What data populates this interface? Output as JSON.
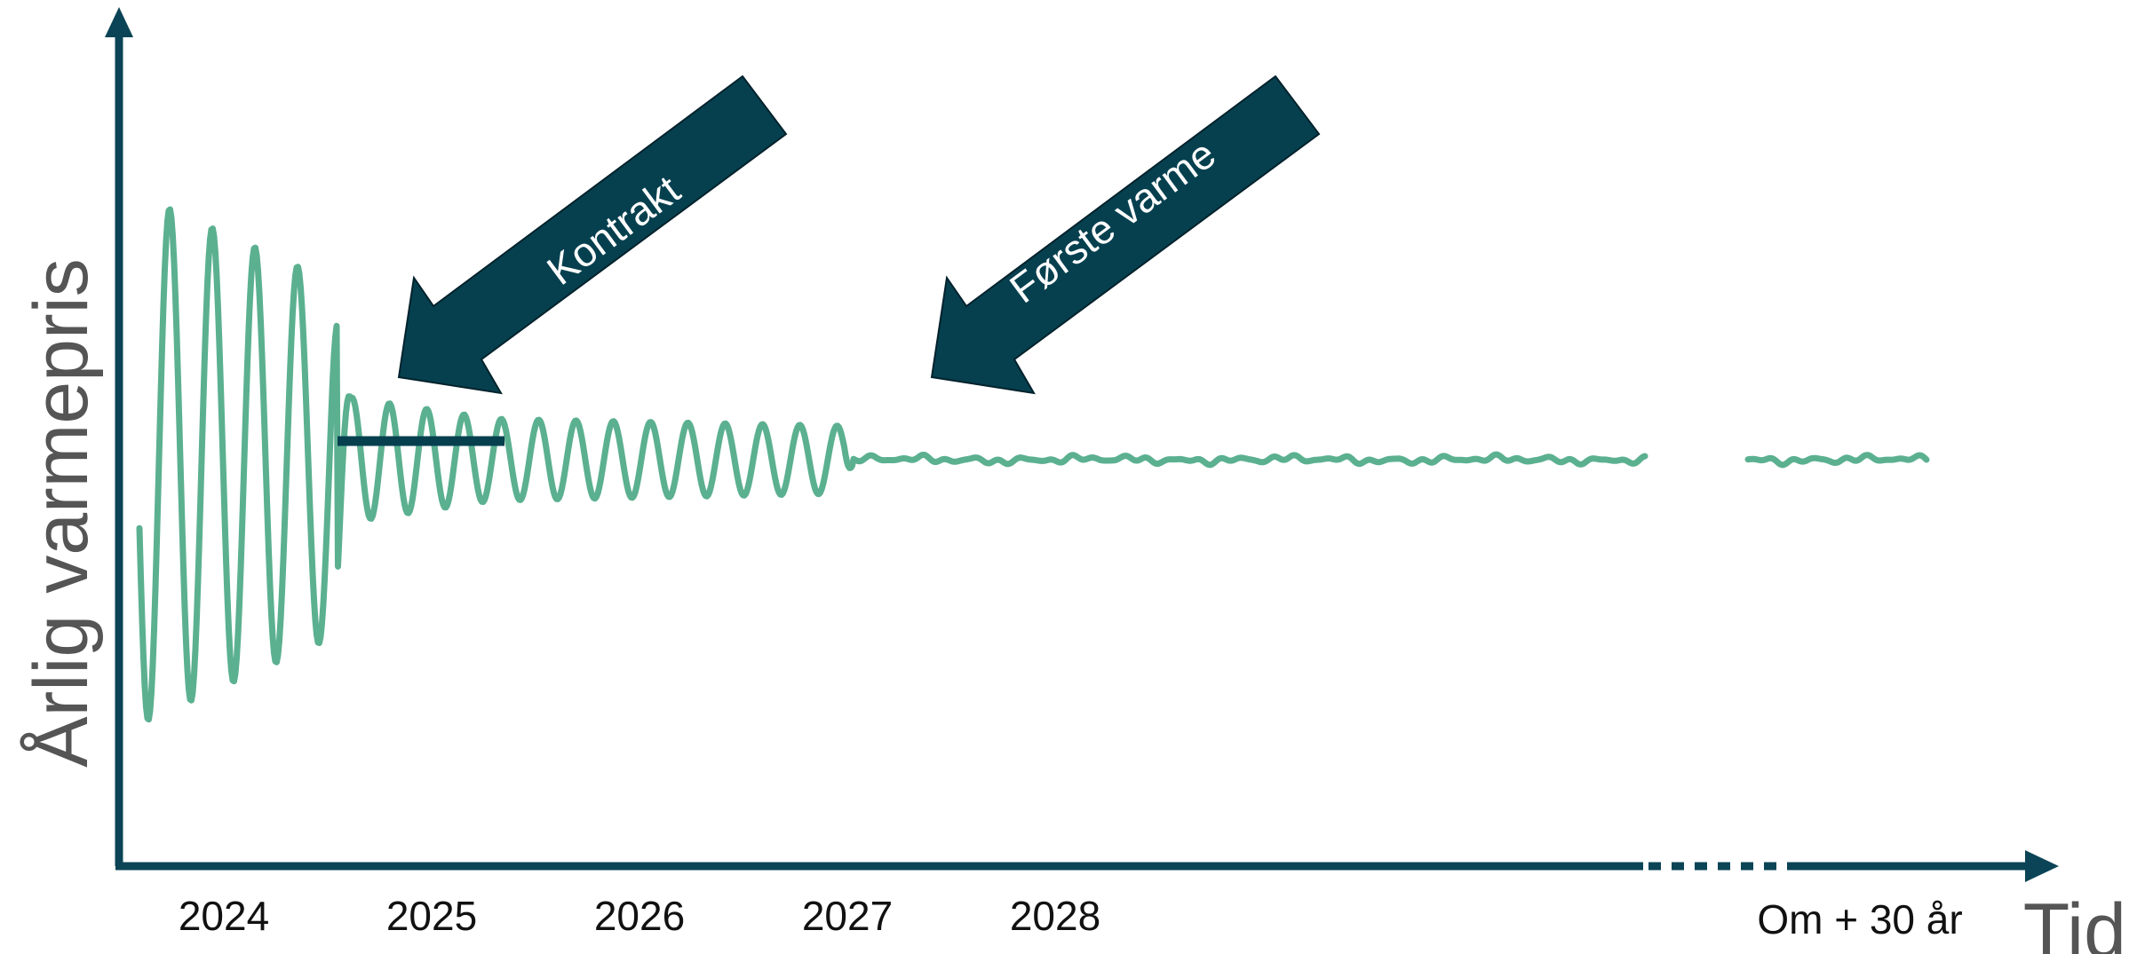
{
  "y_axis": {
    "label": "Årlig varmepris"
  },
  "x_axis": {
    "label": "Tid",
    "ticks": [
      "2024",
      "2025",
      "2026",
      "2027",
      "2028"
    ],
    "far_label": "Om + 30 år"
  },
  "annotations": {
    "contract": "Kontrakt",
    "first_heat": "Første varme"
  },
  "colors": {
    "axis": "#0b4456",
    "line": "#5bb090",
    "arrow": "#06404f",
    "contract_bar": "#06404f"
  }
}
